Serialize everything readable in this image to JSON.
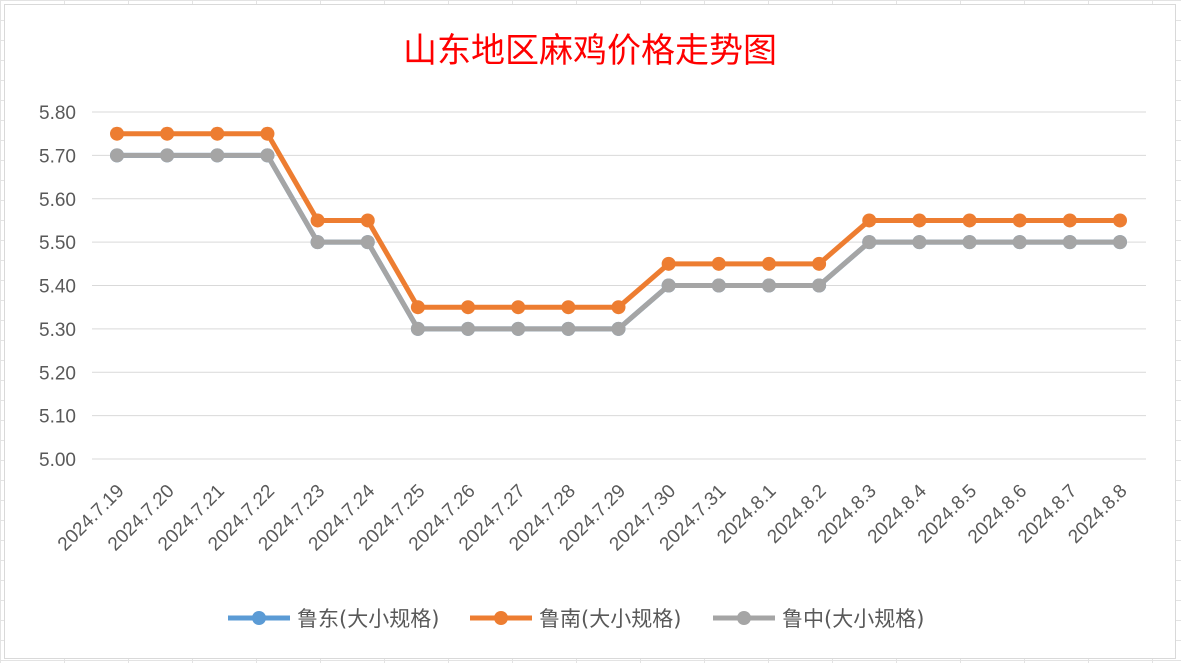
{
  "chart_data": {
    "type": "line",
    "title": "山东地区麻鸡价格走势图",
    "xlabel": "",
    "ylabel": "",
    "ylim": [
      5.0,
      5.8
    ],
    "yticks": [
      "5.00",
      "5.10",
      "5.20",
      "5.30",
      "5.40",
      "5.50",
      "5.60",
      "5.70",
      "5.80"
    ],
    "grid": true,
    "legend_position": "bottom",
    "categories": [
      "2024.7.19",
      "2024.7.20",
      "2024.7.21",
      "2024.7.22",
      "2024.7.23",
      "2024.7.24",
      "2024.7.25",
      "2024.7.26",
      "2024.7.27",
      "2024.7.28",
      "2024.7.29",
      "2024.7.30",
      "2024.7.31",
      "2024.8.1",
      "2024.8.2",
      "2024.8.3",
      "2024.8.4",
      "2024.8.5",
      "2024.8.6",
      "2024.8.7",
      "2024.8.8"
    ],
    "series": [
      {
        "name": "鲁东(大小规格)",
        "color": "#5b9bd5",
        "values": [
          5.7,
          5.7,
          5.7,
          5.7,
          5.5,
          5.5,
          5.3,
          5.3,
          5.3,
          5.3,
          5.3,
          5.4,
          5.4,
          5.4,
          5.4,
          5.5,
          5.5,
          5.5,
          5.5,
          5.5,
          5.5
        ]
      },
      {
        "name": "鲁南(大小规格)",
        "color": "#ed7d31",
        "values": [
          5.75,
          5.75,
          5.75,
          5.75,
          5.55,
          5.55,
          5.35,
          5.35,
          5.35,
          5.35,
          5.35,
          5.45,
          5.45,
          5.45,
          5.45,
          5.55,
          5.55,
          5.55,
          5.55,
          5.55,
          5.55
        ]
      },
      {
        "name": "鲁中(大小规格)",
        "color": "#a5a5a5",
        "values": [
          5.7,
          5.7,
          5.7,
          5.7,
          5.5,
          5.5,
          5.3,
          5.3,
          5.3,
          5.3,
          5.3,
          5.4,
          5.4,
          5.4,
          5.4,
          5.5,
          5.5,
          5.5,
          5.5,
          5.5,
          5.5
        ]
      }
    ]
  }
}
